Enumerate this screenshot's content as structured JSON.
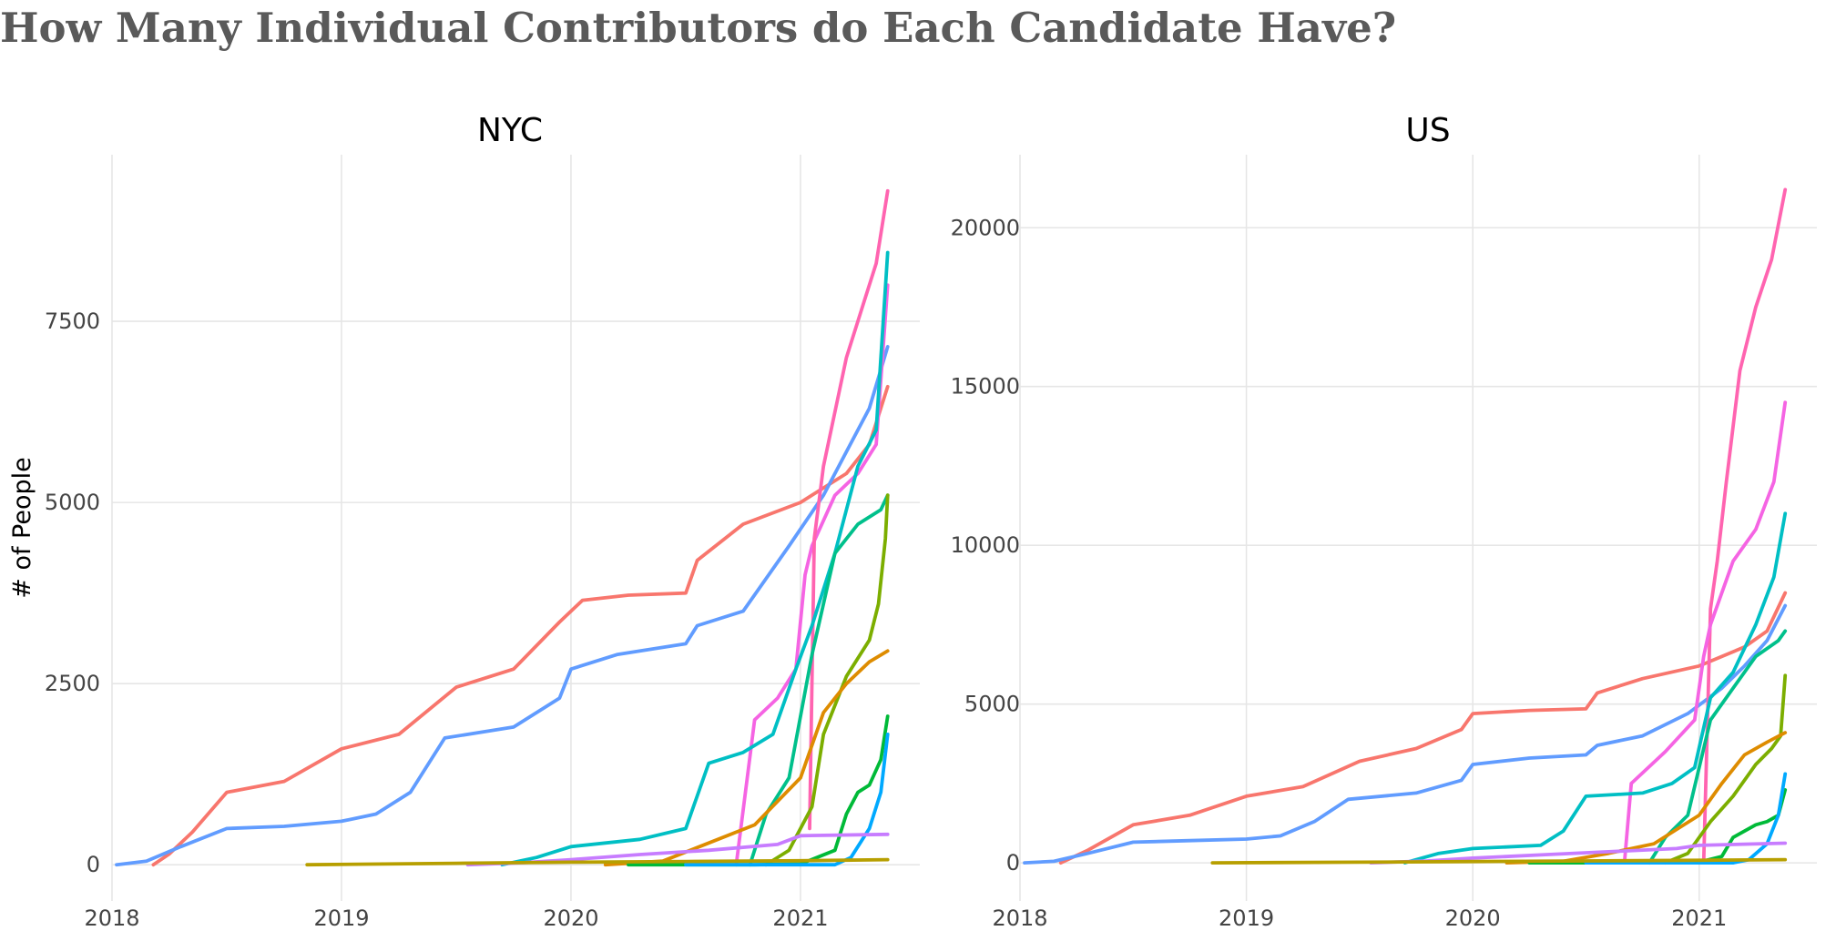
{
  "title": "How Many Individual Contributors do Each Candidate Have?",
  "colors": [
    "#F8766D",
    "#619CFF",
    "#00BFC4",
    "#F564E3",
    "#00C08B",
    "#7CAE00",
    "#DE8C00",
    "#00A9FF",
    "#C77CFF",
    "#00BA38",
    "#B79F00",
    "#FF64B0"
  ],
  "chart_data": [
    {
      "type": "line",
      "panel_title": "NYC",
      "xlabel": "",
      "ylabel": "# of People",
      "xlim": [
        2018.0,
        2021.52
      ],
      "ylim": [
        -500,
        9800
      ],
      "xticks": [
        2018,
        2019,
        2020,
        2021
      ],
      "yticks": [
        0,
        2500,
        5000,
        7500
      ],
      "series": [
        {
          "color": "#F8766D",
          "x": [
            2018.18,
            2018.25,
            2018.35,
            2018.5,
            2018.75,
            2019.0,
            2019.25,
            2019.5,
            2019.75,
            2019.95,
            2020.05,
            2020.25,
            2020.5,
            2020.55,
            2020.75,
            2021.0,
            2021.2,
            2021.3,
            2021.38
          ],
          "y": [
            0,
            150,
            450,
            1000,
            1150,
            1600,
            1800,
            2450,
            2700,
            3350,
            3650,
            3720,
            3750,
            4200,
            4700,
            5000,
            5400,
            5800,
            6600
          ]
        },
        {
          "color": "#619CFF",
          "x": [
            2018.02,
            2018.15,
            2018.3,
            2018.5,
            2018.75,
            2019.0,
            2019.15,
            2019.3,
            2019.45,
            2019.75,
            2019.95,
            2020.0,
            2020.2,
            2020.5,
            2020.55,
            2020.75,
            2020.95,
            2021.1,
            2021.2,
            2021.3,
            2021.38
          ],
          "y": [
            0,
            50,
            250,
            500,
            530,
            600,
            700,
            1000,
            1750,
            1900,
            2300,
            2700,
            2900,
            3050,
            3300,
            3500,
            4400,
            5100,
            5700,
            6300,
            7150
          ]
        },
        {
          "color": "#F564E3",
          "x": [
            2020.72,
            2020.8,
            2020.9,
            2020.98,
            2021.02,
            2021.05,
            2021.15,
            2021.25,
            2021.33,
            2021.38
          ],
          "y": [
            0,
            2000,
            2300,
            2700,
            4000,
            4400,
            5100,
            5400,
            5800,
            8000
          ]
        },
        {
          "color": "#FF64B0",
          "x": [
            2021.04,
            2021.06,
            2021.1,
            2021.2,
            2021.28,
            2021.33,
            2021.38
          ],
          "y": [
            500,
            4500,
            5500,
            7000,
            7800,
            8300,
            9300
          ]
        },
        {
          "color": "#00BFC4",
          "x": [
            2019.7,
            2019.85,
            2020.0,
            2020.3,
            2020.5,
            2020.6,
            2020.75,
            2020.88,
            2020.98,
            2021.05,
            2021.15,
            2021.25,
            2021.33,
            2021.38
          ],
          "y": [
            0,
            100,
            250,
            350,
            500,
            1400,
            1550,
            1800,
            2700,
            3300,
            4300,
            5500,
            6000,
            8450
          ]
        },
        {
          "color": "#00C08B",
          "x": [
            2020.78,
            2020.85,
            2020.95,
            2021.05,
            2021.15,
            2021.25,
            2021.35,
            2021.38
          ],
          "y": [
            0,
            700,
            1200,
            2900,
            4300,
            4700,
            4900,
            5100
          ]
        },
        {
          "color": "#7CAE00",
          "x": [
            2020.85,
            2020.95,
            2021.05,
            2021.1,
            2021.2,
            2021.3,
            2021.34,
            2021.37,
            2021.38
          ],
          "y": [
            0,
            200,
            800,
            1800,
            2600,
            3100,
            3600,
            4500,
            5100
          ]
        },
        {
          "color": "#DE8C00",
          "x": [
            2020.15,
            2020.4,
            2020.6,
            2020.8,
            2021.0,
            2021.1,
            2021.2,
            2021.3,
            2021.38
          ],
          "y": [
            0,
            50,
            300,
            550,
            1200,
            2100,
            2500,
            2800,
            2950
          ]
        },
        {
          "color": "#00BA38",
          "x": [
            2020.25,
            2020.8,
            2021.0,
            2021.15,
            2021.2,
            2021.25,
            2021.3,
            2021.35,
            2021.38
          ],
          "y": [
            0,
            0,
            10,
            200,
            700,
            1000,
            1100,
            1450,
            2050
          ]
        },
        {
          "color": "#00A9FF",
          "x": [
            2020.5,
            2021.15,
            2021.22,
            2021.3,
            2021.35,
            2021.38
          ],
          "y": [
            0,
            0,
            100,
            500,
            1000,
            1800
          ]
        },
        {
          "color": "#C77CFF",
          "x": [
            2019.55,
            2019.8,
            2020.0,
            2020.3,
            2020.6,
            2020.9,
            2021.0,
            2021.38
          ],
          "y": [
            0,
            30,
            70,
            140,
            200,
            280,
            400,
            420
          ]
        },
        {
          "color": "#B79F00",
          "x": [
            2018.85,
            2019.5,
            2020.0,
            2020.5,
            2021.0,
            2021.38
          ],
          "y": [
            0,
            20,
            35,
            45,
            55,
            70
          ]
        }
      ]
    },
    {
      "type": "line",
      "panel_title": "US",
      "xlabel": "",
      "ylabel": "",
      "xlim": [
        2018.0,
        2021.52
      ],
      "ylim": [
        -1200,
        22300
      ],
      "xticks": [
        2018,
        2019,
        2020,
        2021
      ],
      "yticks": [
        0,
        5000,
        10000,
        15000,
        20000
      ],
      "series": [
        {
          "color": "#F8766D",
          "x": [
            2018.18,
            2018.3,
            2018.5,
            2018.75,
            2019.0,
            2019.25,
            2019.5,
            2019.75,
            2019.95,
            2020.0,
            2020.25,
            2020.5,
            2020.55,
            2020.75,
            2021.0,
            2021.2,
            2021.3,
            2021.38
          ],
          "y": [
            0,
            400,
            1200,
            1500,
            2100,
            2400,
            3200,
            3600,
            4200,
            4700,
            4800,
            4850,
            5350,
            5800,
            6200,
            6800,
            7300,
            8500
          ]
        },
        {
          "color": "#619CFF",
          "x": [
            2018.02,
            2018.15,
            2018.3,
            2018.5,
            2018.75,
            2019.0,
            2019.15,
            2019.3,
            2019.45,
            2019.75,
            2019.95,
            2020.0,
            2020.25,
            2020.5,
            2020.55,
            2020.75,
            2020.95,
            2021.1,
            2021.2,
            2021.3,
            2021.38
          ],
          "y": [
            0,
            50,
            300,
            650,
            700,
            750,
            850,
            1300,
            2000,
            2200,
            2600,
            3100,
            3300,
            3400,
            3700,
            4000,
            4700,
            5500,
            6200,
            7000,
            8100
          ]
        },
        {
          "color": "#FF64B0",
          "x": [
            2021.02,
            2021.05,
            2021.08,
            2021.12,
            2021.18,
            2021.25,
            2021.32,
            2021.38
          ],
          "y": [
            0,
            8000,
            9500,
            12000,
            15500,
            17500,
            19000,
            21200
          ]
        },
        {
          "color": "#F564E3",
          "x": [
            2020.67,
            2020.7,
            2020.85,
            2020.98,
            2021.02,
            2021.05,
            2021.15,
            2021.25,
            2021.33,
            2021.38
          ],
          "y": [
            0,
            2500,
            3500,
            4500,
            6500,
            7500,
            9500,
            10500,
            12000,
            14500
          ]
        },
        {
          "color": "#00BFC4",
          "x": [
            2019.7,
            2019.85,
            2020.0,
            2020.3,
            2020.4,
            2020.5,
            2020.75,
            2020.88,
            2020.98,
            2021.05,
            2021.15,
            2021.25,
            2021.33,
            2021.38
          ],
          "y": [
            0,
            300,
            450,
            550,
            1000,
            2100,
            2200,
            2500,
            3000,
            5200,
            6000,
            7500,
            9000,
            11000
          ]
        },
        {
          "color": "#00C08B",
          "x": [
            2020.78,
            2020.85,
            2020.95,
            2021.05,
            2021.15,
            2021.25,
            2021.35,
            2021.38
          ],
          "y": [
            0,
            800,
            1500,
            4500,
            5500,
            6500,
            7000,
            7300
          ]
        },
        {
          "color": "#7CAE00",
          "x": [
            2020.85,
            2020.95,
            2021.05,
            2021.15,
            2021.25,
            2021.32,
            2021.36,
            2021.38
          ],
          "y": [
            0,
            300,
            1300,
            2100,
            3100,
            3600,
            4000,
            5900
          ]
        },
        {
          "color": "#DE8C00",
          "x": [
            2020.15,
            2020.4,
            2020.6,
            2020.8,
            2021.0,
            2021.1,
            2021.2,
            2021.3,
            2021.38
          ],
          "y": [
            0,
            50,
            300,
            600,
            1500,
            2500,
            3400,
            3800,
            4100
          ]
        },
        {
          "color": "#00BA38",
          "x": [
            2020.25,
            2020.8,
            2021.0,
            2021.1,
            2021.15,
            2021.25,
            2021.3,
            2021.35,
            2021.38
          ],
          "y": [
            0,
            0,
            20,
            200,
            800,
            1200,
            1300,
            1500,
            2300
          ]
        },
        {
          "color": "#00A9FF",
          "x": [
            2020.5,
            2021.15,
            2021.22,
            2021.3,
            2021.35,
            2021.38
          ],
          "y": [
            0,
            0,
            100,
            600,
            1500,
            2800
          ]
        },
        {
          "color": "#C77CFF",
          "x": [
            2019.55,
            2019.8,
            2020.0,
            2020.3,
            2020.6,
            2020.9,
            2021.0,
            2021.38
          ],
          "y": [
            0,
            60,
            150,
            250,
            350,
            450,
            550,
            620
          ]
        },
        {
          "color": "#B79F00",
          "x": [
            2018.85,
            2019.5,
            2020.0,
            2020.5,
            2021.0,
            2021.38
          ],
          "y": [
            0,
            20,
            40,
            60,
            80,
            100
          ]
        }
      ]
    }
  ]
}
